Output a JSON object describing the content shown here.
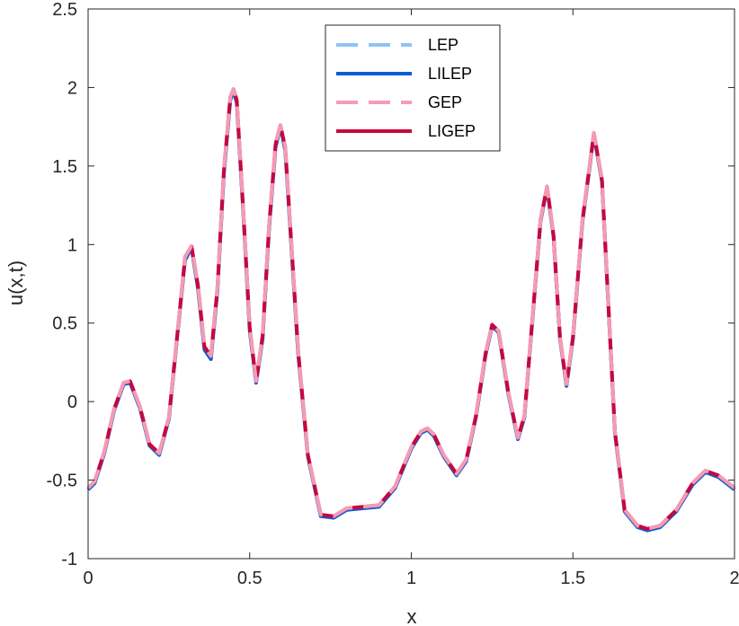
{
  "chart_data": {
    "type": "line",
    "title": "",
    "xlabel": "x",
    "ylabel": "u(x,t)",
    "xlim": [
      0,
      2
    ],
    "ylim": [
      -1,
      2.5
    ],
    "grid": false,
    "legend_position": "top-center",
    "x_ticks": [
      {
        "value": 0,
        "label": "0"
      },
      {
        "value": 0.5,
        "label": "0.5"
      },
      {
        "value": 1,
        "label": "1"
      },
      {
        "value": 1.5,
        "label": "1.5"
      },
      {
        "value": 2,
        "label": "2"
      }
    ],
    "y_ticks": [
      {
        "value": -1,
        "label": "-1"
      },
      {
        "value": -0.5,
        "label": "-0.5"
      },
      {
        "value": 0,
        "label": "0"
      },
      {
        "value": 0.5,
        "label": "0.5"
      },
      {
        "value": 1,
        "label": "1"
      },
      {
        "value": 1.5,
        "label": "1.5"
      },
      {
        "value": 2,
        "label": "2"
      },
      {
        "value": 2.5,
        "label": "2.5"
      }
    ],
    "x": [
      0,
      0.02,
      0.05,
      0.08,
      0.11,
      0.13,
      0.16,
      0.19,
      0.22,
      0.25,
      0.28,
      0.3,
      0.32,
      0.34,
      0.36,
      0.38,
      0.4,
      0.42,
      0.44,
      0.45,
      0.46,
      0.48,
      0.5,
      0.52,
      0.54,
      0.56,
      0.58,
      0.595,
      0.61,
      0.63,
      0.65,
      0.68,
      0.72,
      0.76,
      0.8,
      0.85,
      0.9,
      0.95,
      1.0,
      1.03,
      1.05,
      1.07,
      1.1,
      1.14,
      1.17,
      1.2,
      1.23,
      1.25,
      1.27,
      1.3,
      1.33,
      1.35,
      1.37,
      1.4,
      1.42,
      1.44,
      1.46,
      1.48,
      1.5,
      1.53,
      1.565,
      1.59,
      1.61,
      1.63,
      1.66,
      1.7,
      1.73,
      1.77,
      1.82,
      1.87,
      1.91,
      1.95,
      2.0
    ],
    "series": [
      {
        "name": "LEP",
        "color": "#8fc3f5",
        "dash": "dashed",
        "values": [
          -0.56,
          -0.52,
          -0.33,
          -0.06,
          0.11,
          0.12,
          -0.04,
          -0.28,
          -0.34,
          -0.11,
          0.5,
          0.9,
          0.98,
          0.72,
          0.33,
          0.27,
          0.7,
          1.45,
          1.92,
          1.98,
          1.9,
          1.2,
          0.45,
          0.12,
          0.4,
          1.1,
          1.62,
          1.75,
          1.6,
          0.95,
          0.3,
          -0.35,
          -0.73,
          -0.74,
          -0.69,
          -0.68,
          -0.67,
          -0.55,
          -0.3,
          -0.2,
          -0.18,
          -0.22,
          -0.35,
          -0.47,
          -0.38,
          -0.1,
          0.3,
          0.48,
          0.44,
          0.05,
          -0.24,
          -0.1,
          0.4,
          1.15,
          1.36,
          1.05,
          0.4,
          0.1,
          0.4,
          1.15,
          1.7,
          1.4,
          0.6,
          -0.2,
          -0.7,
          -0.8,
          -0.82,
          -0.8,
          -0.7,
          -0.53,
          -0.45,
          -0.48,
          -0.56
        ]
      },
      {
        "name": "LILEP",
        "color": "#0a5cd6",
        "dash": "solid",
        "values": [
          -0.56,
          -0.52,
          -0.33,
          -0.06,
          0.11,
          0.12,
          -0.04,
          -0.28,
          -0.34,
          -0.11,
          0.5,
          0.9,
          0.98,
          0.72,
          0.33,
          0.27,
          0.7,
          1.45,
          1.92,
          1.98,
          1.9,
          1.2,
          0.45,
          0.12,
          0.4,
          1.1,
          1.62,
          1.75,
          1.6,
          0.95,
          0.3,
          -0.35,
          -0.73,
          -0.74,
          -0.69,
          -0.68,
          -0.67,
          -0.55,
          -0.3,
          -0.2,
          -0.18,
          -0.22,
          -0.35,
          -0.47,
          -0.38,
          -0.1,
          0.3,
          0.48,
          0.44,
          0.05,
          -0.24,
          -0.1,
          0.4,
          1.15,
          1.36,
          1.05,
          0.4,
          0.1,
          0.4,
          1.15,
          1.7,
          1.4,
          0.6,
          -0.2,
          -0.7,
          -0.8,
          -0.82,
          -0.8,
          -0.7,
          -0.53,
          -0.45,
          -0.48,
          -0.56
        ]
      },
      {
        "name": "GEP",
        "color": "#f59bb4",
        "dash": "dashed",
        "values": [
          -0.55,
          -0.51,
          -0.32,
          -0.05,
          0.12,
          0.13,
          -0.03,
          -0.27,
          -0.33,
          -0.1,
          0.51,
          0.92,
          0.99,
          0.74,
          0.35,
          0.29,
          0.72,
          1.47,
          1.94,
          1.99,
          1.92,
          1.22,
          0.47,
          0.13,
          0.42,
          1.12,
          1.64,
          1.76,
          1.62,
          0.97,
          0.32,
          -0.34,
          -0.72,
          -0.73,
          -0.68,
          -0.67,
          -0.66,
          -0.54,
          -0.29,
          -0.19,
          -0.17,
          -0.21,
          -0.34,
          -0.46,
          -0.37,
          -0.09,
          0.31,
          0.49,
          0.45,
          0.06,
          -0.23,
          -0.09,
          0.41,
          1.16,
          1.37,
          1.06,
          0.41,
          0.11,
          0.41,
          1.16,
          1.71,
          1.41,
          0.61,
          -0.19,
          -0.69,
          -0.79,
          -0.81,
          -0.79,
          -0.69,
          -0.52,
          -0.44,
          -0.47,
          -0.55
        ]
      },
      {
        "name": "LIGEP",
        "color": "#c8073d",
        "dash": "solid",
        "values": [
          -0.55,
          -0.51,
          -0.32,
          -0.05,
          0.12,
          0.13,
          -0.03,
          -0.27,
          -0.33,
          -0.1,
          0.51,
          0.92,
          0.99,
          0.74,
          0.35,
          0.29,
          0.72,
          1.47,
          1.94,
          1.99,
          1.92,
          1.22,
          0.47,
          0.13,
          0.42,
          1.12,
          1.64,
          1.76,
          1.62,
          0.97,
          0.32,
          -0.34,
          -0.72,
          -0.73,
          -0.68,
          -0.67,
          -0.66,
          -0.54,
          -0.29,
          -0.19,
          -0.17,
          -0.21,
          -0.34,
          -0.46,
          -0.37,
          -0.09,
          0.31,
          0.49,
          0.45,
          0.06,
          -0.23,
          -0.09,
          0.41,
          1.16,
          1.37,
          1.06,
          0.41,
          0.11,
          0.41,
          1.16,
          1.71,
          1.41,
          0.61,
          -0.19,
          -0.69,
          -0.79,
          -0.81,
          -0.79,
          -0.69,
          -0.52,
          -0.44,
          -0.47,
          -0.55
        ]
      }
    ],
    "draw_order": [
      "LEP",
      "LILEP",
      "LIGEP",
      "GEP"
    ]
  }
}
